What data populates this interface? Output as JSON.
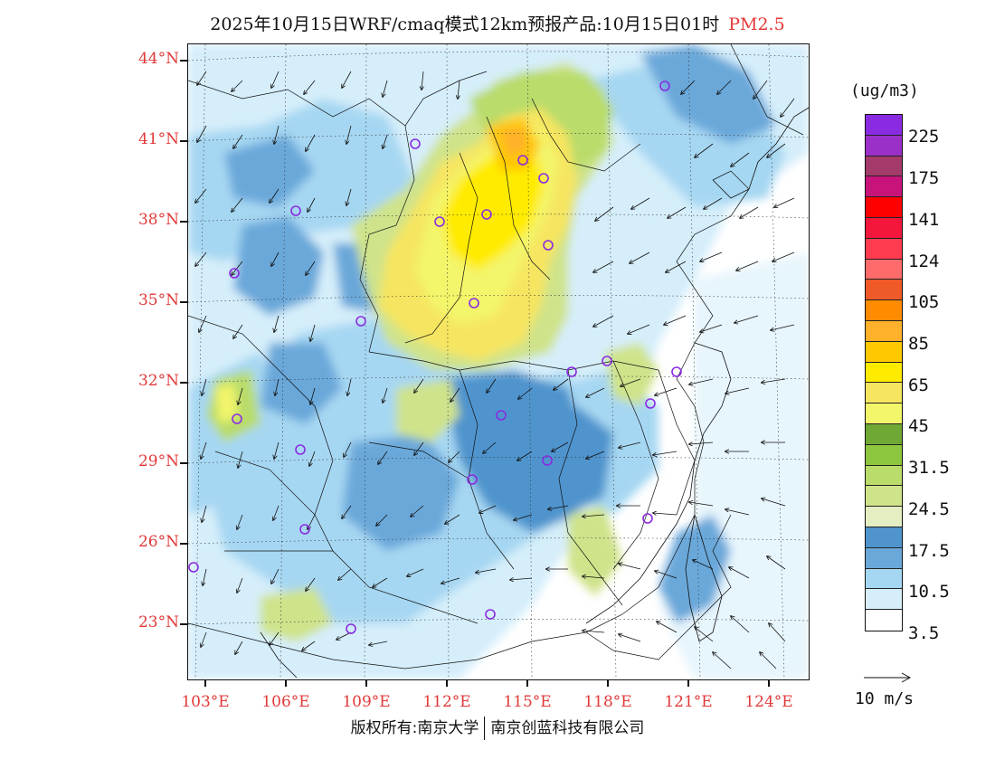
{
  "title": {
    "text": "2025年10月15日WRF/cmaq模式12km预报产品:10月15日01时",
    "variable": "PM2.5",
    "variable_color": "#e53838"
  },
  "map": {
    "lat_labels": [
      "44°N",
      "41°N",
      "38°N",
      "35°N",
      "32°N",
      "29°N",
      "26°N",
      "23°N"
    ],
    "lon_labels": [
      "103°E",
      "106°E",
      "109°E",
      "112°E",
      "115°E",
      "118°E",
      "121°E",
      "124°E"
    ],
    "label_color": "#e03a3a",
    "stations_marker": "circle-marker",
    "station_color": "#8a2be2"
  },
  "legend": {
    "units": "(ug/m3)",
    "colors": [
      "#8a2be2",
      "#9b30c9",
      "#a33a6a",
      "#c8137a",
      "#ff0000",
      "#f5163c",
      "#ff3b50",
      "#ff6b6b",
      "#f05a28",
      "#ff8c00",
      "#ffb12b",
      "#ffc800",
      "#ffeb00",
      "#f6e560",
      "#f3f56a",
      "#6fa835",
      "#8dc63f",
      "#b9dc6a",
      "#cfe38a",
      "#e3eec2",
      "#4f94cd",
      "#6aa8da",
      "#a6d7f2",
      "#d5eefa",
      "#ffffff"
    ],
    "labels": [
      "225",
      "175",
      "141",
      "124",
      "105",
      "85",
      "65",
      "45",
      "31.5",
      "24.5",
      "17.5",
      "10.5",
      "3.5"
    ]
  },
  "wind_reference": {
    "label": "10 m/s",
    "arrow": "wind-arrow"
  },
  "copyright": {
    "left": "版权所有:南京大学",
    "right": "南京创蓝科技有限公司"
  }
}
